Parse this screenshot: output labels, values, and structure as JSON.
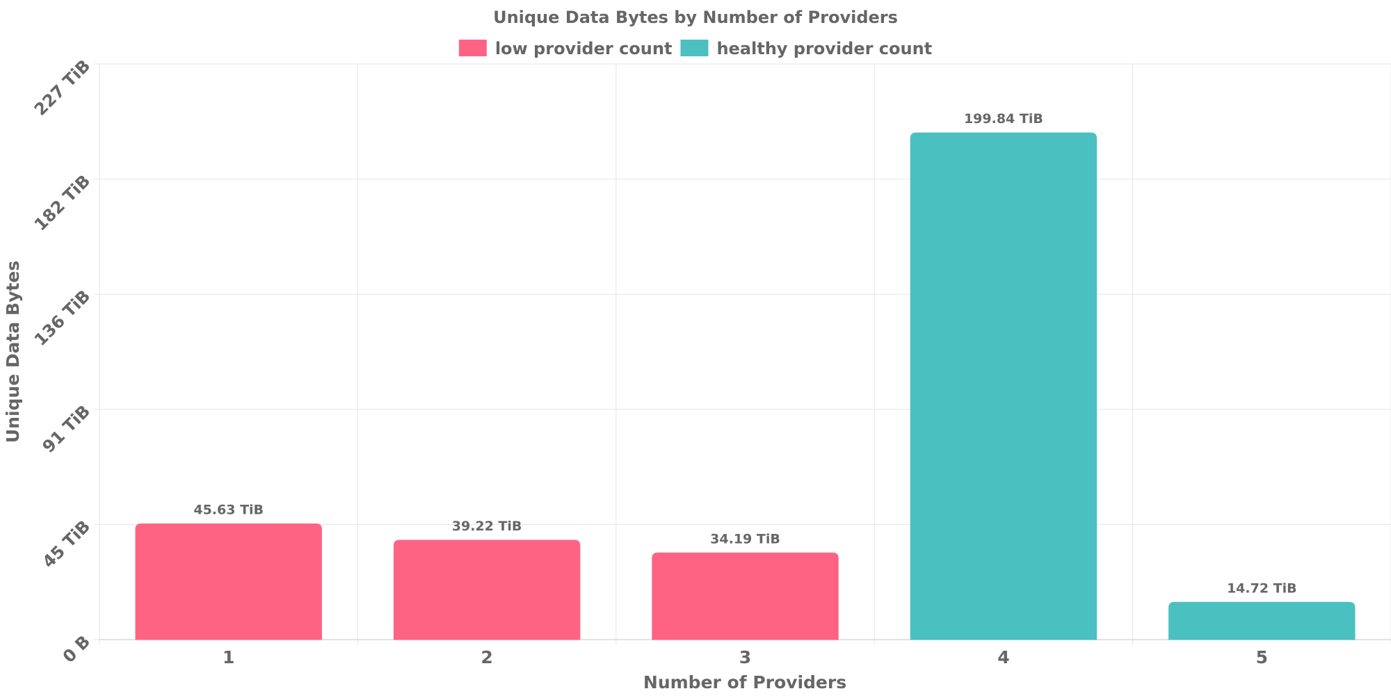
{
  "chart_data": {
    "type": "bar",
    "title": "Unique Data Bytes by Number of Providers",
    "xlabel": "Number of Providers",
    "ylabel": "Unique Data Bytes",
    "categories": [
      "1",
      "2",
      "3",
      "4",
      "5"
    ],
    "values": [
      45.63,
      39.22,
      34.19,
      199.84,
      14.72
    ],
    "value_labels": [
      "45.63 TiB",
      "39.22 TiB",
      "34.19 TiB",
      "199.84 TiB",
      "14.72 TiB"
    ],
    "bar_groups": [
      "low",
      "low",
      "low",
      "healthy",
      "healthy"
    ],
    "legend": [
      {
        "key": "low",
        "label": "low provider count",
        "color": "#ff6384"
      },
      {
        "key": "healthy",
        "label": "healthy provider count",
        "color": "#4bc0c0"
      }
    ],
    "legend_position": "top-center",
    "y_ticks": [
      {
        "value": 0,
        "label": "0 B"
      },
      {
        "value": 45.4,
        "label": "45 TiB"
      },
      {
        "value": 90.8,
        "label": "91 TiB"
      },
      {
        "value": 136.2,
        "label": "136 TiB"
      },
      {
        "value": 181.6,
        "label": "182 TiB"
      },
      {
        "value": 227,
        "label": "227 TiB"
      }
    ],
    "ylim": [
      0,
      227
    ],
    "unit": "TiB",
    "grid": true
  }
}
